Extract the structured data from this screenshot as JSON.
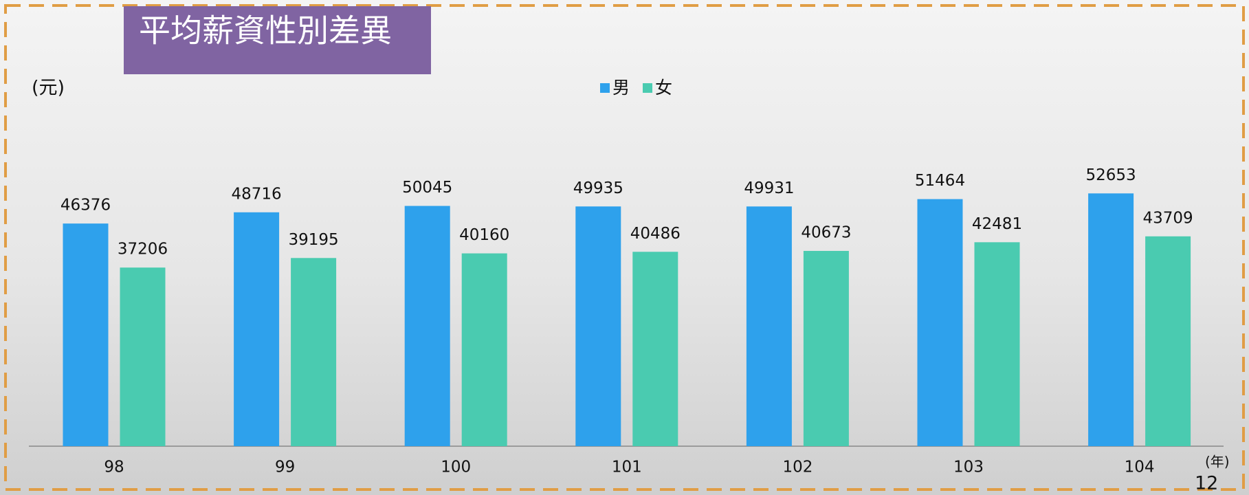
{
  "title": "平均薪資性別差異",
  "page_number": "12",
  "chart_data": {
    "type": "bar",
    "y_label": "(元)",
    "x_label": "(年)",
    "categories": [
      "98",
      "99",
      "100",
      "101",
      "102",
      "103",
      "104"
    ],
    "series": [
      {
        "name": "男",
        "color": "#2ea1ec",
        "values": [
          46376,
          48716,
          50045,
          49935,
          49931,
          51464,
          52653
        ]
      },
      {
        "name": "女",
        "color": "#4acbb0",
        "values": [
          37206,
          39195,
          40160,
          40486,
          40673,
          42481,
          43709
        ]
      }
    ],
    "ylim": [
      0,
      60000
    ],
    "legend": "top"
  }
}
